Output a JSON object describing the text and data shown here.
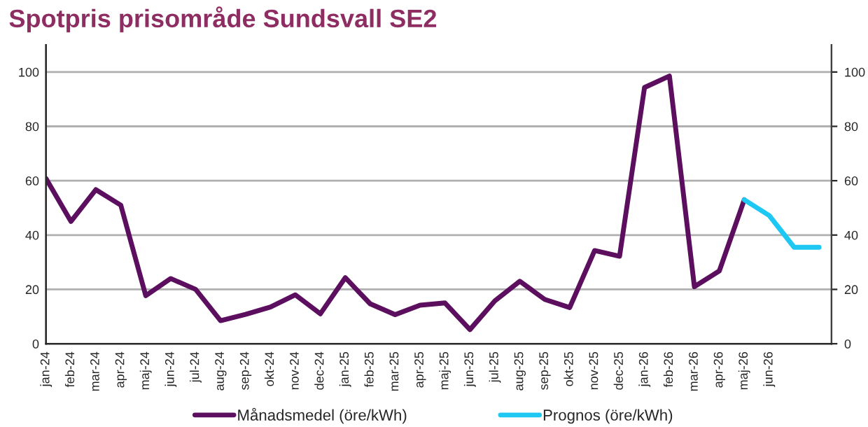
{
  "chart_data": {
    "type": "line",
    "title": "Spotpris prisområde Sundsvall SE2",
    "categories": [
      "jan-24",
      "feb-24",
      "mar-24",
      "apr-24",
      "maj-24",
      "jun-24",
      "jul-24",
      "aug-24",
      "sep-24",
      "okt-24",
      "nov-24",
      "dec-24",
      "jan-25",
      "feb-25",
      "mar-25",
      "apr-25",
      "maj-25",
      "jun-25",
      "jul-25",
      "aug-25",
      "sep-25",
      "okt-25",
      "nov-25",
      "dec-25",
      "jan-26",
      "feb-26",
      "mar-26",
      "apr-26",
      "maj-26",
      "jun-26",
      null,
      null
    ],
    "series": [
      {
        "name": "Månadsmedel (öre/kWh)",
        "color": "#5c0f5e",
        "values": [
          60.8,
          45,
          56.7,
          51,
          17.7,
          24,
          20,
          8.5,
          10.8,
          13.5,
          18,
          11,
          24.3,
          14.7,
          10.7,
          14.2,
          15,
          5.2,
          15.8,
          23,
          16.3,
          13.3,
          34.3,
          32.2,
          94.3,
          98.5,
          21,
          26.8,
          53,
          null,
          null,
          null
        ]
      },
      {
        "name": "Prognos (öre/kWh)",
        "color": "#1ec8f2",
        "values": [
          null,
          null,
          null,
          null,
          null,
          null,
          null,
          null,
          null,
          null,
          null,
          null,
          null,
          null,
          null,
          null,
          null,
          null,
          null,
          null,
          null,
          null,
          null,
          null,
          null,
          null,
          null,
          null,
          53,
          47.2,
          35.5,
          35.5
        ]
      }
    ],
    "ylim": [
      0,
      110
    ],
    "yticks": [
      0,
      20,
      40,
      60,
      80,
      100
    ],
    "y2lim": [
      0,
      110
    ],
    "y2ticks": [
      0,
      20,
      40,
      60,
      80,
      100
    ],
    "grid": "y",
    "legend": "bottom",
    "line_style": "solid",
    "marker": "none"
  }
}
